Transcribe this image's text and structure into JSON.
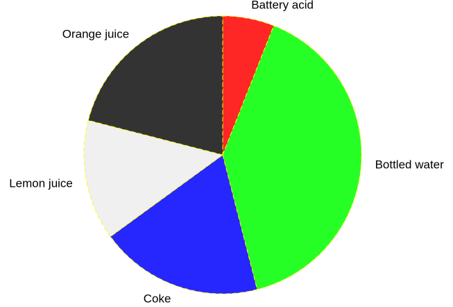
{
  "chart_data": {
    "type": "pie",
    "title": "",
    "start_angle_deg": 90,
    "direction": "clockwise",
    "edge_color": "#ffff00",
    "edge_style": "dashed",
    "slices": [
      {
        "label": "Battery acid",
        "value": 6,
        "color": "#ff2626"
      },
      {
        "label": "Bottled water",
        "value": 40,
        "color": "#26ff26"
      },
      {
        "label": "Coke",
        "value": 19,
        "color": "#2626ff"
      },
      {
        "label": "Lemon juice",
        "value": 14,
        "color": "#f0f0f0"
      },
      {
        "label": "Orange juice",
        "value": 21,
        "color": "#333333"
      }
    ]
  }
}
